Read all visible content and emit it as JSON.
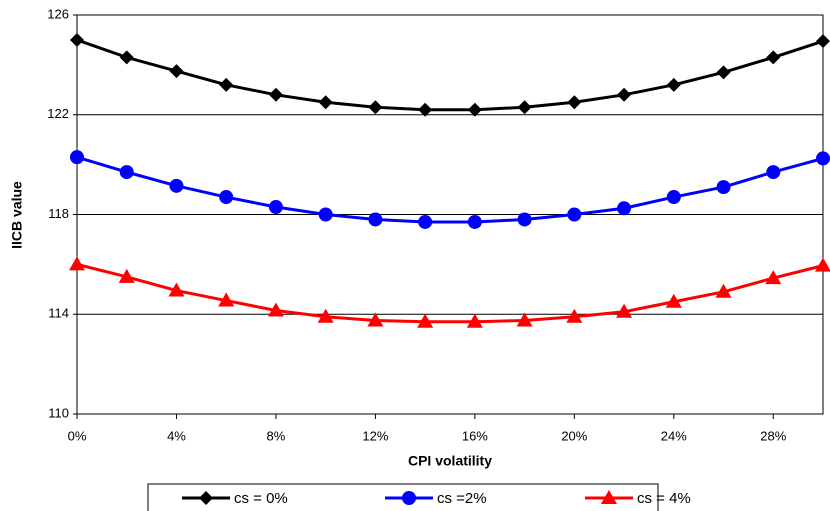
{
  "chart_data": {
    "type": "line",
    "x_label": "CPI volatility",
    "y_label": "IICB value",
    "x": [
      0,
      2,
      4,
      6,
      8,
      10,
      12,
      14,
      16,
      18,
      20,
      22,
      24,
      26,
      28,
      30
    ],
    "series": [
      {
        "name": "cs = 0%",
        "color": "#000000",
        "marker": "diamond",
        "values": [
          125.0,
          124.3,
          123.75,
          123.2,
          122.8,
          122.5,
          122.3,
          122.2,
          122.2,
          122.3,
          122.5,
          122.8,
          123.2,
          123.7,
          124.3,
          124.95
        ]
      },
      {
        "name": "cs =2%",
        "color": "#0000ff",
        "marker": "circle",
        "values": [
          120.3,
          119.7,
          119.15,
          118.7,
          118.3,
          118.0,
          117.8,
          117.7,
          117.7,
          117.8,
          118.0,
          118.25,
          118.7,
          119.1,
          119.7,
          120.25
        ]
      },
      {
        "name": "cs = 4%",
        "color": "#ff0000",
        "marker": "triangle",
        "values": [
          116.0,
          115.5,
          114.95,
          114.55,
          114.15,
          113.9,
          113.75,
          113.7,
          113.7,
          113.75,
          113.9,
          114.1,
          114.5,
          114.9,
          115.45,
          115.95
        ]
      }
    ],
    "xlim": [
      0,
      30
    ],
    "xticks": [
      {
        "value": 0,
        "label": "0%"
      },
      {
        "value": 4,
        "label": "4%"
      },
      {
        "value": 8,
        "label": "8%"
      },
      {
        "value": 12,
        "label": "12%"
      },
      {
        "value": 16,
        "label": "16%"
      },
      {
        "value": 20,
        "label": "20%"
      },
      {
        "value": 24,
        "label": "24%"
      },
      {
        "value": 28,
        "label": "28%"
      }
    ],
    "ylim": [
      110,
      126
    ],
    "yticks": [
      110,
      114,
      118,
      122,
      126
    ],
    "grid": true,
    "legend": "bottom"
  }
}
